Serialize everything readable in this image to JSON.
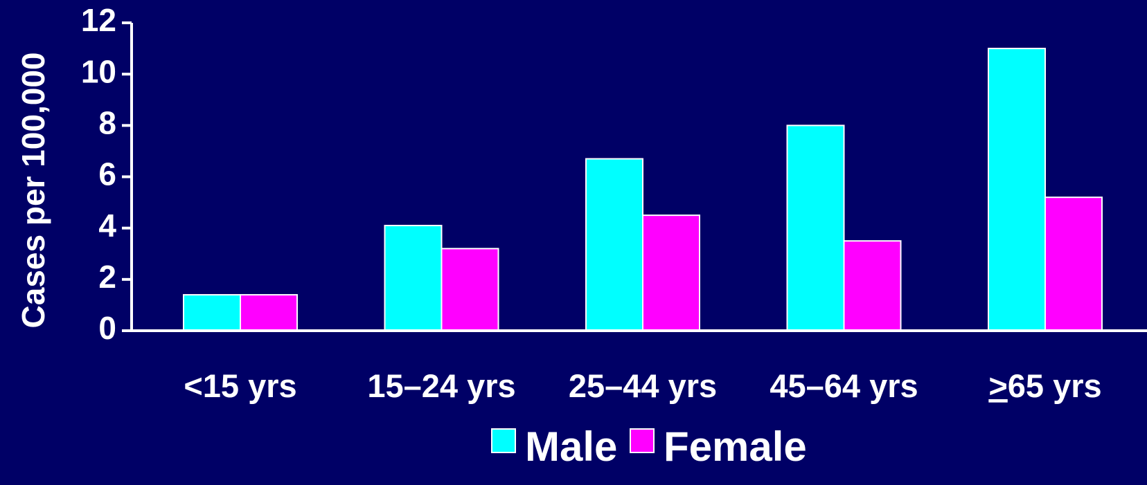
{
  "colors": {
    "background": "#000066",
    "axis": "#ffffff",
    "bar_outline": "#ffffff",
    "text": "#ffffff"
  },
  "chart_data": {
    "type": "bar",
    "title": "",
    "xlabel": "",
    "ylabel": "Cases per 100,000",
    "ylim": [
      0,
      12
    ],
    "yticks": [
      "0",
      "2",
      "4",
      "6",
      "8",
      "10",
      "12"
    ],
    "categories": [
      "<15 yrs",
      "15–24 yrs",
      "25–44 yrs",
      "45–64 yrs",
      ">65 yrs"
    ],
    "category_underline_prefix": [
      false,
      false,
      false,
      false,
      true
    ],
    "series": [
      {
        "name": "Male",
        "color": "#00ffff",
        "values": [
          1.4,
          4.1,
          6.7,
          8.0,
          11.0
        ]
      },
      {
        "name": "Female",
        "color": "#ff00ff",
        "values": [
          1.4,
          3.2,
          4.5,
          3.5,
          5.2
        ]
      }
    ],
    "grid": false,
    "legend_position": "bottom-center"
  }
}
